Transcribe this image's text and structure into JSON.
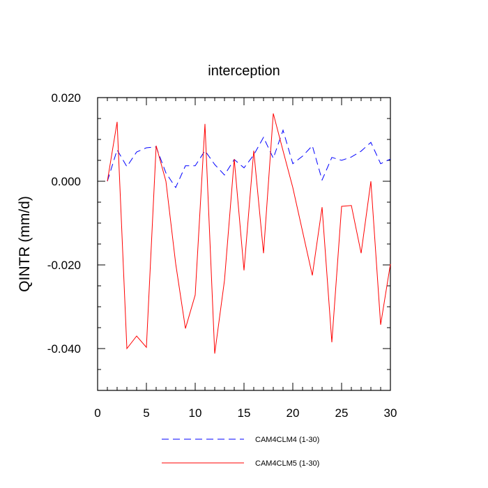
{
  "chart_data": {
    "type": "line",
    "title": "interception",
    "xlabel": "",
    "ylabel": "QINTR  (mm/d)",
    "xlim": [
      0,
      30
    ],
    "ylim": [
      -0.05,
      0.02
    ],
    "xticks": [
      0,
      5,
      10,
      15,
      20,
      25,
      30
    ],
    "xtick_labels": [
      "0",
      "5",
      "10",
      "15",
      "20",
      "25",
      "30"
    ],
    "yticks": [
      -0.04,
      -0.02,
      0.0,
      0.02
    ],
    "ytick_labels": [
      "-0.040",
      "-0.020",
      "0.000",
      "0.020"
    ],
    "grid": false,
    "legend_position": "bottom",
    "series": [
      {
        "name": "CAM4CLM4 (1-30)",
        "color": "#0000ff",
        "dash": "dashed",
        "x": [
          1,
          2,
          3,
          4,
          5,
          6,
          7,
          8,
          9,
          10,
          11,
          12,
          13,
          14,
          15,
          16,
          17,
          18,
          19,
          20,
          21,
          22,
          23,
          24,
          25,
          26,
          27,
          28,
          29,
          30
        ],
        "values": [
          0.0,
          0.0075,
          0.0035,
          0.007,
          0.008,
          0.0082,
          0.002,
          -0.0015,
          0.0037,
          0.0037,
          0.0073,
          0.004,
          0.0015,
          0.0052,
          0.0032,
          0.0063,
          0.0105,
          0.0055,
          0.0122,
          0.0042,
          0.006,
          0.0085,
          0.0003,
          0.0057,
          0.005,
          0.0058,
          0.0072,
          0.0093,
          0.0042,
          0.0053
        ]
      },
      {
        "name": "CAM4CLM5 (1-30)",
        "color": "#ff0000",
        "dash": "solid",
        "x": [
          1,
          2,
          3,
          4,
          5,
          6,
          7,
          8,
          9,
          10,
          11,
          12,
          13,
          14,
          15,
          16,
          17,
          18,
          19,
          20,
          21,
          22,
          23,
          24,
          25,
          26,
          27,
          28,
          29,
          30
        ],
        "values": [
          0.0,
          0.0142,
          -0.04,
          -0.037,
          -0.0397,
          0.0085,
          0.0,
          -0.0197,
          -0.0352,
          -0.0272,
          0.0137,
          -0.0412,
          -0.0237,
          0.0053,
          -0.0213,
          0.0073,
          -0.0172,
          0.0162,
          0.0073,
          -0.0015,
          -0.012,
          -0.0225,
          -0.0062,
          -0.0385,
          -0.006,
          -0.0058,
          -0.0172,
          0.0,
          -0.0343,
          -0.0198
        ]
      }
    ]
  }
}
